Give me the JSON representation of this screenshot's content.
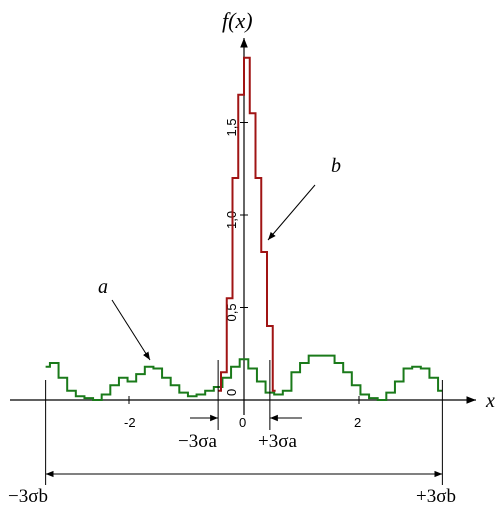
{
  "chart_data": {
    "type": "line",
    "ylabel": "f(x)",
    "xlabel": "x",
    "xlim": [
      -3.5,
      4.0
    ],
    "ylim": [
      0,
      2.0
    ],
    "x_ticks": [
      -2,
      0,
      2
    ],
    "y_ticks": [
      0,
      0.5,
      1.0,
      1.5
    ],
    "tick_labels": {
      "x": [
        "-2",
        "0",
        "2"
      ],
      "y": [
        "0",
        "0,5",
        "1,0",
        "1,5"
      ]
    },
    "series": [
      {
        "name": "a",
        "color": "#1a7a1a",
        "x": [
          -3.45,
          -3.3,
          -3.15,
          -3.0,
          -2.85,
          -2.7,
          -2.55,
          -2.4,
          -2.25,
          -2.1,
          -1.95,
          -1.8,
          -1.65,
          -1.5,
          -1.35,
          -1.2,
          -1.05,
          -0.9,
          -0.75,
          -0.6,
          -0.45,
          -0.3,
          -0.15,
          0.0,
          0.15,
          0.3,
          0.45,
          0.6,
          0.75,
          0.9,
          1.05,
          1.2,
          1.35,
          1.5,
          1.65,
          1.8,
          1.95,
          2.1,
          2.25,
          2.4,
          2.55,
          2.7,
          2.85,
          3.0,
          3.15,
          3.3,
          3.45
        ],
        "y": [
          0.18,
          0.2,
          0.12,
          0.05,
          0.02,
          0.01,
          0.0,
          0.03,
          0.08,
          0.12,
          0.1,
          0.14,
          0.18,
          0.17,
          0.12,
          0.08,
          0.04,
          0.02,
          0.03,
          0.05,
          0.07,
          0.12,
          0.18,
          0.22,
          0.17,
          0.1,
          0.04,
          0.03,
          0.05,
          0.15,
          0.2,
          0.24,
          0.24,
          0.24,
          0.2,
          0.15,
          0.08,
          0.03,
          0.01,
          0.0,
          0.04,
          0.1,
          0.17,
          0.18,
          0.17,
          0.12,
          0.05
        ]
      },
      {
        "name": "b",
        "color": "#a01414",
        "x": [
          -0.45,
          -0.35,
          -0.25,
          -0.15,
          -0.05,
          0.05,
          0.15,
          0.25,
          0.35,
          0.45,
          0.55
        ],
        "y": [
          0.05,
          0.15,
          0.55,
          1.2,
          1.65,
          1.85,
          1.55,
          1.2,
          0.8,
          0.4,
          0.05
        ]
      }
    ],
    "annotations": {
      "label_a": "a",
      "label_b": "b",
      "sigma_a_left": "−3σa",
      "sigma_a_right": "+3σa",
      "sigma_b_left": "−3σb",
      "sigma_b_right": "+3σb",
      "sigma_a": 0.45,
      "sigma_b": 3.45
    }
  }
}
